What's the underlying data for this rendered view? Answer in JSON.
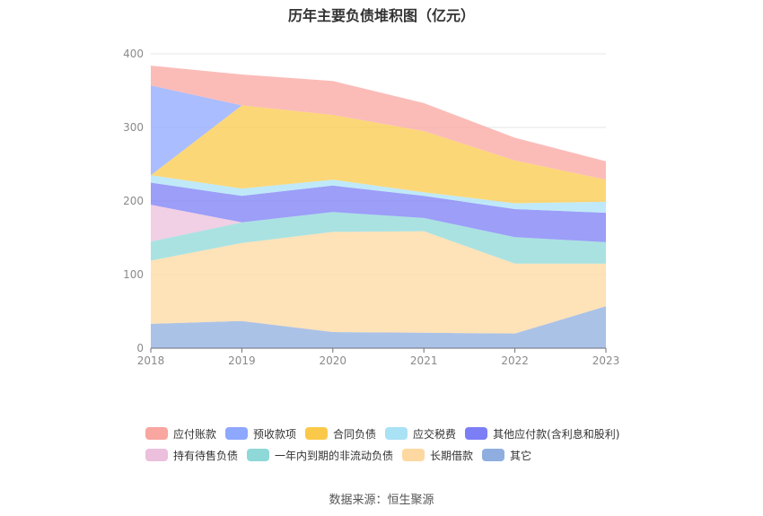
{
  "title": "历年主要负债堆积图（亿元）",
  "source": "数据来源：恒生聚源",
  "chart_data": {
    "type": "area",
    "stacked": true,
    "categories": [
      "2018",
      "2019",
      "2020",
      "2021",
      "2022",
      "2023"
    ],
    "ylim": [
      0,
      400
    ],
    "yticks": [
      0,
      100,
      200,
      300,
      400
    ],
    "grid": true,
    "legend_position": "bottom",
    "series": [
      {
        "name": "其它",
        "color": "#8faedf",
        "values": [
          33,
          37,
          22,
          21,
          20,
          57
        ]
      },
      {
        "name": "长期借款",
        "color": "#fdd8a0",
        "values": [
          86,
          106,
          136,
          138,
          95,
          58
        ]
      },
      {
        "name": "一年内到期的非流动负债",
        "color": "#8ed8d8",
        "values": [
          26,
          28,
          27,
          18,
          36,
          29
        ]
      },
      {
        "name": "持有待售负债",
        "color": "#ecbfdc",
        "values": [
          50,
          0,
          0,
          0,
          0,
          0
        ]
      },
      {
        "name": "其他应付款(含利息和股利)",
        "color": "#7b7ef5",
        "values": [
          30,
          36,
          36,
          30,
          38,
          40
        ]
      },
      {
        "name": "应交税费",
        "color": "#a9e1f5",
        "values": [
          10,
          10,
          8,
          5,
          8,
          15
        ]
      },
      {
        "name": "合同负债",
        "color": "#fbc94a",
        "values": [
          0,
          113,
          88,
          83,
          58,
          30
        ]
      },
      {
        "name": "预收款项",
        "color": "#8ea7ff",
        "values": [
          122,
          0,
          0,
          0,
          0,
          0
        ]
      },
      {
        "name": "应付账款",
        "color": "#f9a5a0",
        "values": [
          27,
          42,
          46,
          38,
          31,
          25
        ]
      }
    ]
  },
  "legend_rows": [
    [
      "应付账款",
      "预收款项",
      "合同负债",
      "应交税费",
      "其他应付款(含利息和股利)"
    ],
    [
      "持有待售负债",
      "一年内到期的非流动负债",
      "长期借款",
      "其它"
    ]
  ]
}
